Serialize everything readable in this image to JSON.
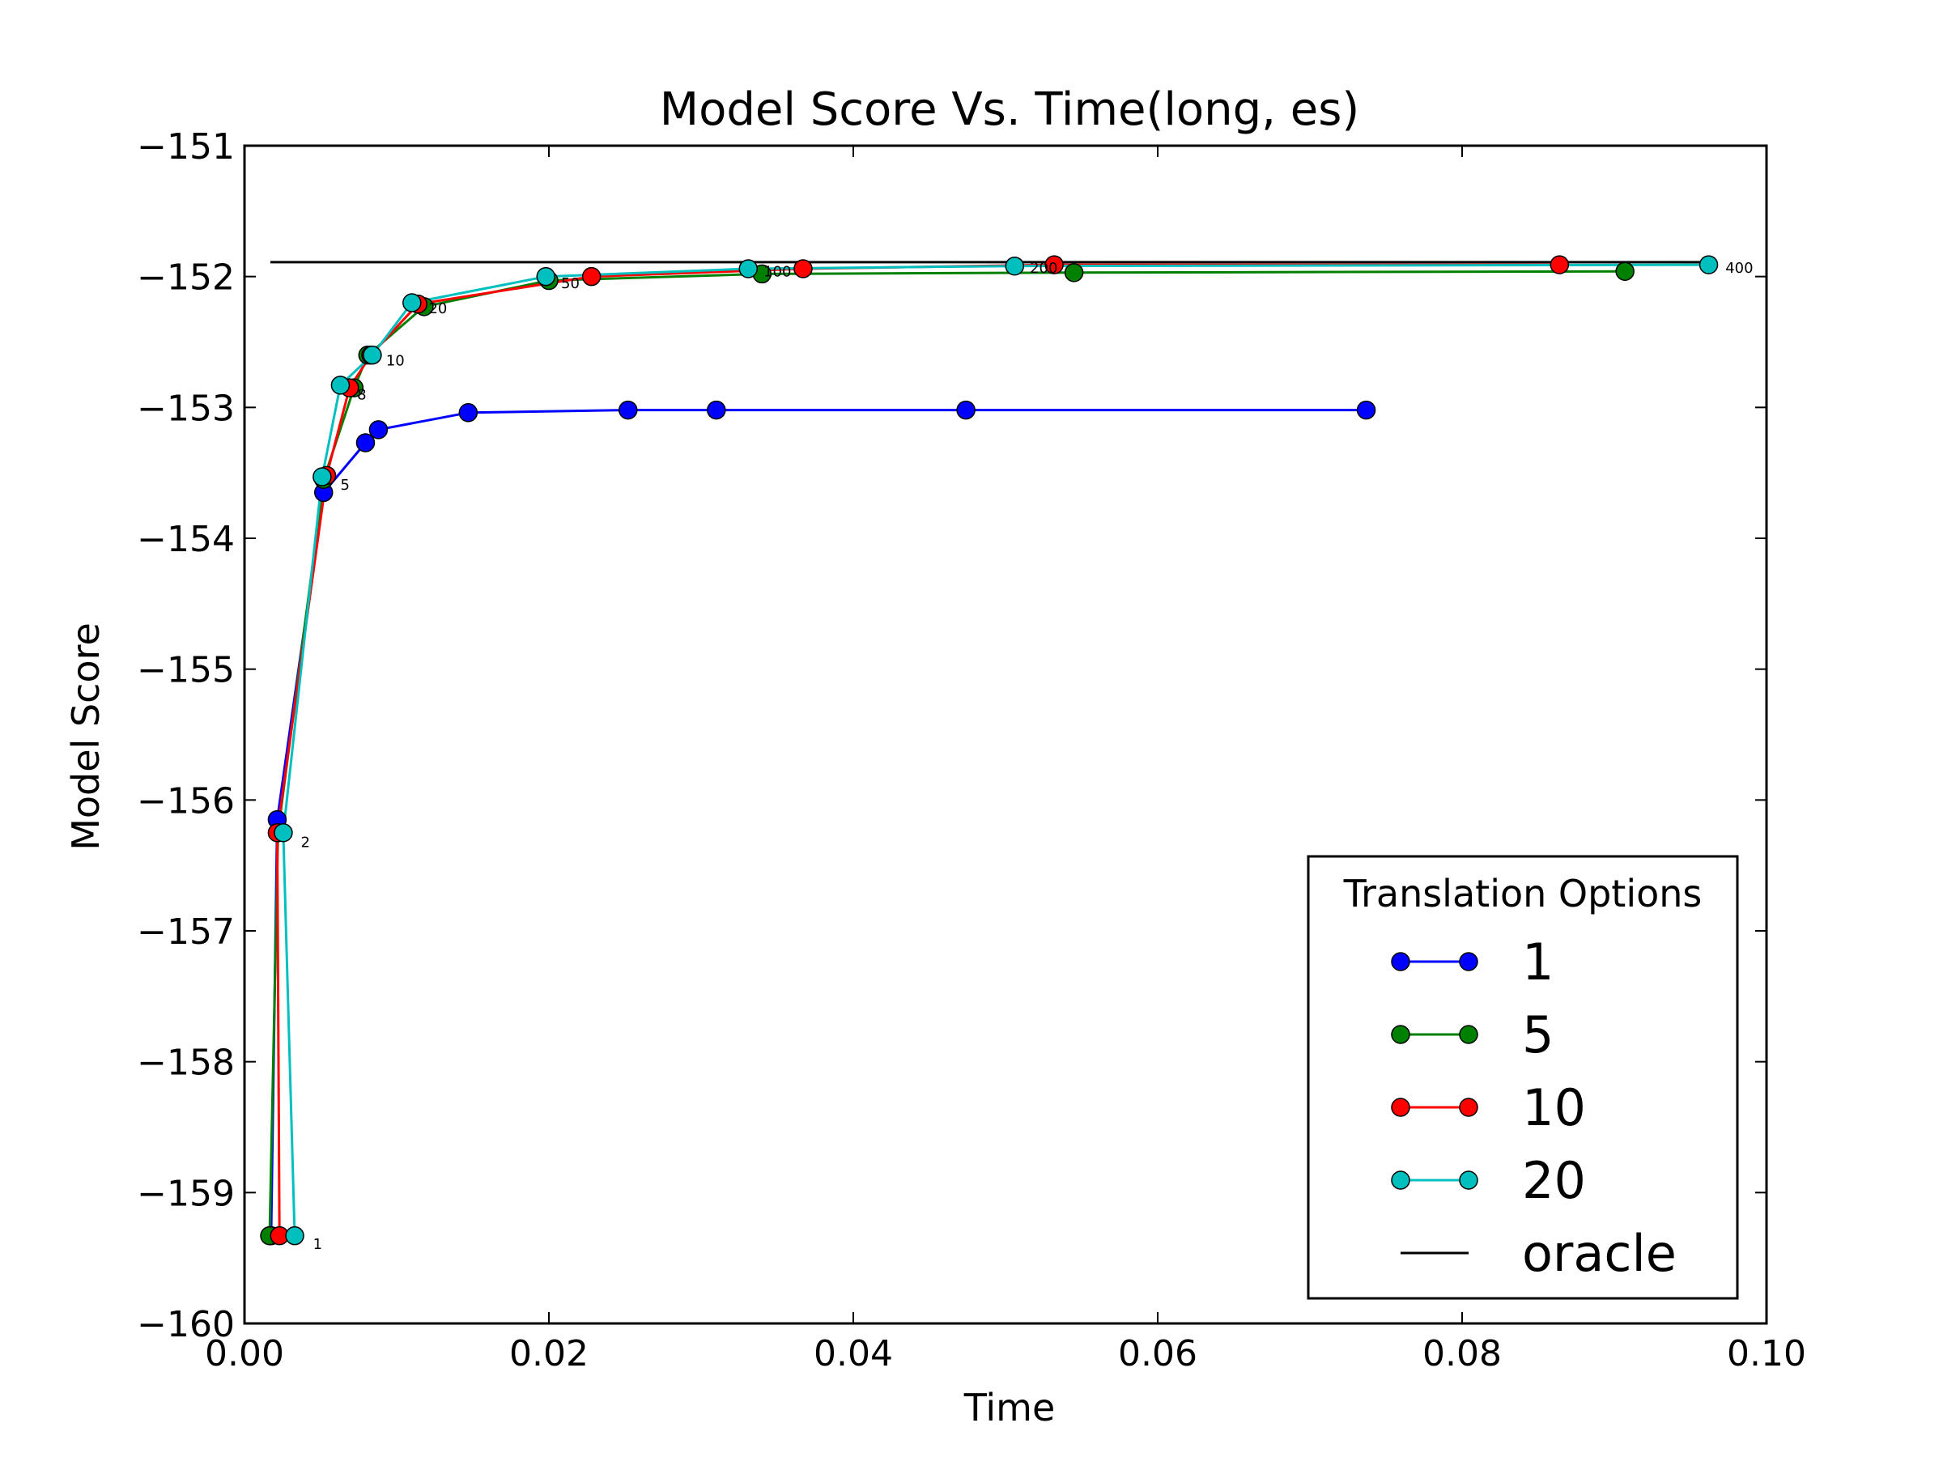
{
  "chart_data": {
    "type": "line",
    "title": "Model Score Vs. Time(long, es)",
    "xlabel": "Time",
    "ylabel": "Model Score",
    "xlim": [
      0.0,
      0.1
    ],
    "ylim": [
      -160,
      -151
    ],
    "xticks": [
      0.0,
      0.02,
      0.04,
      0.06,
      0.08,
      0.1
    ],
    "xtick_labels": [
      "0.00",
      "0.02",
      "0.04",
      "0.06",
      "0.08",
      "0.10"
    ],
    "yticks": [
      -160,
      -159,
      -158,
      -157,
      -156,
      -155,
      -154,
      -153,
      -152,
      -151
    ],
    "ytick_labels": [
      "−160",
      "−159",
      "−158",
      "−157",
      "−156",
      "−155",
      "−154",
      "−153",
      "−152",
      "−151"
    ],
    "grid": false,
    "legend": {
      "title": "Translation Options",
      "position": "lower-right"
    },
    "series": [
      {
        "name": "1",
        "color": "#0000ff",
        "x": [
          0.00175,
          0.00215,
          0.0052,
          0.00795,
          0.0088,
          0.0147,
          0.0252,
          0.031,
          0.0474,
          0.0737
        ],
        "y": [
          -159.33,
          -156.15,
          -153.65,
          -153.27,
          -153.17,
          -153.04,
          -153.02,
          -153.02,
          -153.02,
          -153.02
        ]
      },
      {
        "name": "5",
        "color": "#008000",
        "x": [
          0.00165,
          0.0022,
          0.0052,
          0.0072,
          0.0081,
          0.0118,
          0.02,
          0.034,
          0.0545,
          0.0907
        ],
        "y": [
          -159.33,
          -156.25,
          -153.55,
          -152.85,
          -152.6,
          -152.23,
          -152.03,
          -151.98,
          -151.97,
          -151.96
        ]
      },
      {
        "name": "10",
        "color": "#ff0000",
        "x": [
          0.0023,
          0.00215,
          0.0054,
          0.0069,
          0.0083,
          0.0114,
          0.0228,
          0.0367,
          0.0532,
          0.0864
        ],
        "y": [
          -159.33,
          -156.25,
          -153.52,
          -152.85,
          -152.6,
          -152.21,
          -152.0,
          -151.94,
          -151.91,
          -151.91
        ]
      },
      {
        "name": "20",
        "color": "#00bfbf",
        "x": [
          0.0033,
          0.00255,
          0.0051,
          0.0063,
          0.0084,
          0.011,
          0.0198,
          0.0331,
          0.0506,
          0.0962
        ],
        "y": [
          -159.33,
          -156.25,
          -153.53,
          -152.83,
          -152.6,
          -152.2,
          -152.0,
          -151.94,
          -151.92,
          -151.91
        ]
      }
    ],
    "oracle": {
      "name": "oracle",
      "color": "#000000",
      "y": -151.89,
      "x_range": [
        0.0017,
        0.0962
      ]
    },
    "annotations": [
      {
        "text": "1",
        "x": 0.0045,
        "y": -159.43
      },
      {
        "text": "2",
        "x": 0.0037,
        "y": -156.36
      },
      {
        "text": "5",
        "x": 0.0063,
        "y": -153.63
      },
      {
        "text": "8",
        "x": 0.0074,
        "y": -152.94
      },
      {
        "text": "10",
        "x": 0.0093,
        "y": -152.68
      },
      {
        "text": "20",
        "x": 0.0121,
        "y": -152.28
      },
      {
        "text": "50",
        "x": 0.0208,
        "y": -152.09
      },
      {
        "text": "100",
        "x": 0.0341,
        "y": -152.0
      },
      {
        "text": "200",
        "x": 0.0516,
        "y": -151.97
      },
      {
        "text": "400",
        "x": 0.0973,
        "y": -151.97
      }
    ]
  }
}
